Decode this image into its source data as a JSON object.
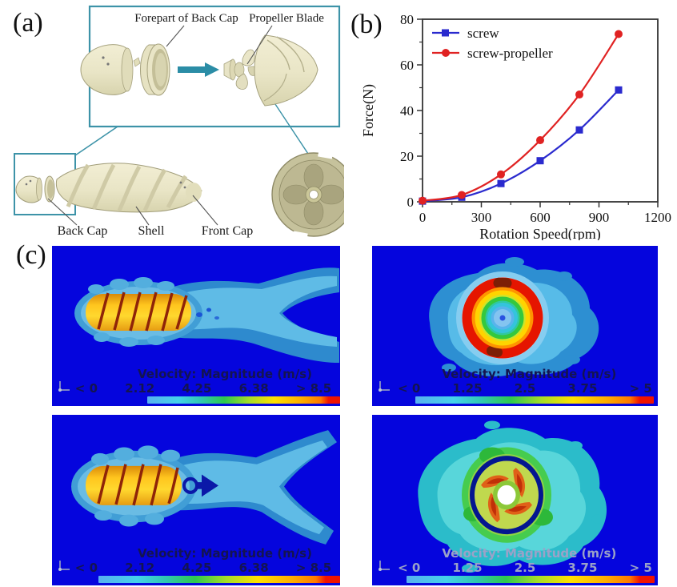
{
  "figure": {
    "panel_a": {
      "label": "(a)",
      "callouts": {
        "forepart_back_cap": "Forepart of Back Cap",
        "propeller_blade": "Propeller Blade",
        "back_cap": "Back Cap",
        "shell": "Shell",
        "front_cap": "Front Cap"
      }
    },
    "panel_b": {
      "label": "(b)"
    },
    "panel_c": {
      "label": "(c)",
      "cfd_panels": [
        {
          "view": "side-view-screw",
          "colorbar_title": "Velocity: Magnitude (m/s)",
          "colorbar_ticks": [
            "< 0",
            "2.12",
            "4.25",
            "6.38",
            "> 8.5"
          ]
        },
        {
          "view": "cross-section-screw",
          "colorbar_title": "Velocity: Magnitude (m/s)",
          "colorbar_ticks": [
            "< 0",
            "1.25",
            "2.5",
            "3.75",
            "> 5"
          ]
        },
        {
          "view": "side-view-screw-propeller",
          "colorbar_title": "Velocity: Magnitude (m/s)",
          "colorbar_ticks": [
            "< 0",
            "2.12",
            "4.25",
            "6.38",
            "> 8.5"
          ]
        },
        {
          "view": "cross-section-screw-propeller",
          "colorbar_title": "Velocity: Magnitude (m/s)",
          "colorbar_ticks": [
            "< 0",
            "1.25",
            "2.5",
            "3.75",
            "> 5"
          ]
        }
      ]
    }
  },
  "chart_data": {
    "type": "line",
    "title": "",
    "xlabel": "Rotation Speed(rpm)",
    "ylabel": "Force(N)",
    "xlim": [
      0,
      1200
    ],
    "ylim": [
      0,
      80
    ],
    "xticks": [
      0,
      300,
      600,
      900,
      1200
    ],
    "yticks": [
      0,
      20,
      40,
      60,
      80
    ],
    "x_minor_step": 150,
    "y_minor_step": 10,
    "grid": false,
    "legend_position": "top-left",
    "x": [
      0,
      200,
      400,
      600,
      800,
      1000
    ],
    "series": [
      {
        "name": "screw",
        "color": "#2a2ace",
        "marker": "square",
        "values": [
          0.3,
          2.0,
          8.0,
          18.0,
          31.5,
          49.0
        ]
      },
      {
        "name": "screw-propeller",
        "color": "#e02222",
        "marker": "circle",
        "values": [
          0.5,
          3.0,
          12.0,
          27.0,
          47.0,
          73.5
        ]
      }
    ]
  },
  "colors": {
    "cfd_background": "#0505dd",
    "inset_outline": "#3d93a8",
    "arrow_teal": "#2b8da6",
    "capsule_yellow": "#ffd020",
    "helix_dark_red": "#8f2408",
    "wake_blue": "#2e8ace",
    "axis_text": "#111111"
  }
}
